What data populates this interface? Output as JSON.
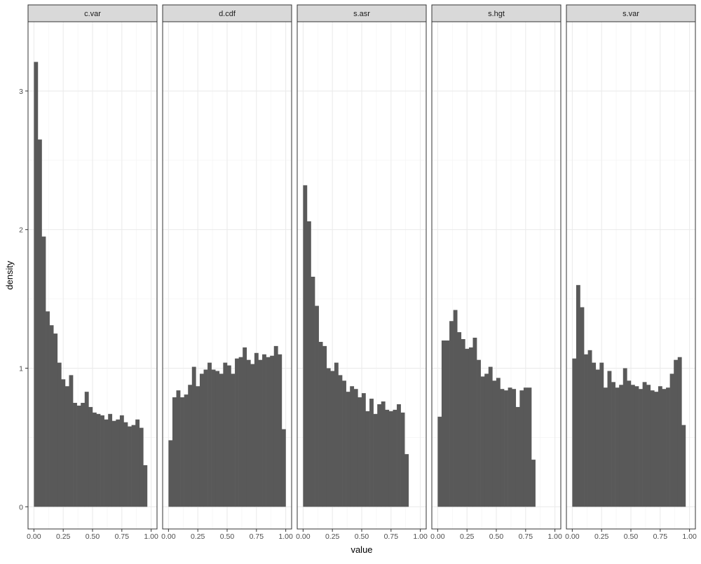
{
  "chart_data": {
    "type": "bar",
    "xlabel": "value",
    "ylabel": "density",
    "xlim": [
      -0.05,
      1.05
    ],
    "ylim": [
      -0.16,
      3.5
    ],
    "x_ticks": [
      0,
      0.25,
      0.5,
      0.75,
      1
    ],
    "x_tick_labels": [
      "0.00",
      "0.25",
      "0.50",
      "0.75",
      "1.00"
    ],
    "y_ticks": [
      0,
      1,
      2,
      3
    ],
    "y_tick_labels": [
      "0",
      "1",
      "2",
      "3"
    ],
    "grid": true,
    "bar_color": "#595959",
    "bin_width": 0.0333,
    "bin_start": 0,
    "panels": [
      {
        "name": "c.var",
        "values": [
          3.21,
          2.65,
          1.95,
          1.41,
          1.31,
          1.25,
          1.04,
          0.92,
          0.87,
          0.95,
          0.75,
          0.73,
          0.75,
          0.83,
          0.72,
          0.68,
          0.67,
          0.66,
          0.63,
          0.67,
          0.62,
          0.63,
          0.66,
          0.61,
          0.58,
          0.59,
          0.63,
          0.57,
          0.3
        ]
      },
      {
        "name": "d.cdf",
        "values": [
          0.48,
          0.79,
          0.84,
          0.79,
          0.81,
          0.88,
          1.01,
          0.87,
          0.96,
          0.99,
          1.04,
          0.99,
          0.98,
          0.96,
          1.04,
          1.02,
          0.96,
          1.07,
          1.08,
          1.15,
          1.06,
          1.03,
          1.11,
          1.06,
          1.1,
          1.08,
          1.09,
          1.16,
          1.1,
          0.56
        ]
      },
      {
        "name": "s.asr",
        "values": [
          2.32,
          2.06,
          1.66,
          1.45,
          1.19,
          1.16,
          1.0,
          0.98,
          1.04,
          0.95,
          0.91,
          0.83,
          0.87,
          0.85,
          0.79,
          0.82,
          0.69,
          0.78,
          0.67,
          0.74,
          0.76,
          0.7,
          0.69,
          0.7,
          0.74,
          0.68,
          0.38
        ]
      },
      {
        "name": "s.hgt",
        "values": [
          0.65,
          1.2,
          1.2,
          1.34,
          1.42,
          1.26,
          1.21,
          1.14,
          1.15,
          1.22,
          1.06,
          0.94,
          0.96,
          1.01,
          0.91,
          0.93,
          0.85,
          0.84,
          0.86,
          0.85,
          0.72,
          0.84,
          0.86,
          0.86,
          0.34
        ]
      },
      {
        "name": "s.var",
        "values": [
          1.07,
          1.6,
          1.44,
          1.1,
          1.13,
          1.04,
          0.99,
          1.04,
          0.86,
          0.98,
          0.9,
          0.86,
          0.88,
          1.0,
          0.91,
          0.88,
          0.87,
          0.85,
          0.9,
          0.88,
          0.84,
          0.83,
          0.87,
          0.85,
          0.86,
          0.96,
          1.06,
          1.08,
          0.59
        ]
      }
    ]
  }
}
